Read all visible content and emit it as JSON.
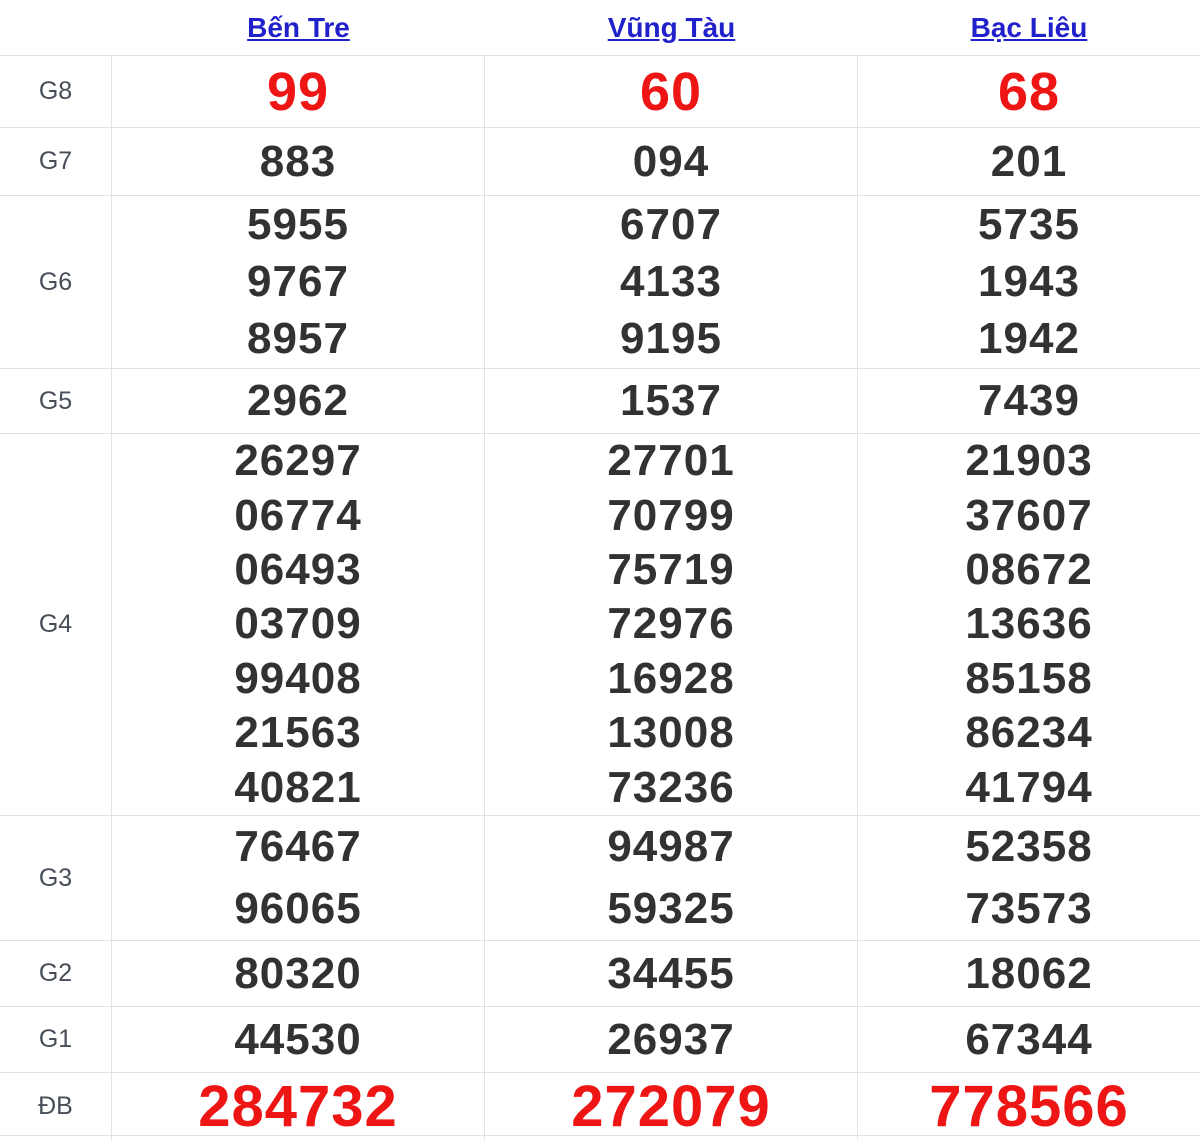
{
  "colors": {
    "link": "#2121cc",
    "red": "#ee1515",
    "num": "#323232",
    "label": "#474e58",
    "border": "#e2e2e2"
  },
  "table": {
    "headers": [
      {
        "label": "Bến Tre"
      },
      {
        "label": "Vũng Tàu"
      },
      {
        "label": "Bạc Liêu"
      }
    ],
    "rows": [
      {
        "label": "G8",
        "cols": [
          [
            "99"
          ],
          [
            "60"
          ],
          [
            "68"
          ]
        ]
      },
      {
        "label": "G7",
        "cols": [
          [
            "883"
          ],
          [
            "094"
          ],
          [
            "201"
          ]
        ]
      },
      {
        "label": "G6",
        "cols": [
          [
            "5955",
            "9767",
            "8957"
          ],
          [
            "6707",
            "4133",
            "9195"
          ],
          [
            "5735",
            "1943",
            "1942"
          ]
        ]
      },
      {
        "label": "G5",
        "cols": [
          [
            "2962"
          ],
          [
            "1537"
          ],
          [
            "7439"
          ]
        ]
      },
      {
        "label": "G4",
        "cols": [
          [
            "26297",
            "06774",
            "06493",
            "03709",
            "99408",
            "21563",
            "40821"
          ],
          [
            "27701",
            "70799",
            "75719",
            "72976",
            "16928",
            "13008",
            "73236"
          ],
          [
            "21903",
            "37607",
            "08672",
            "13636",
            "85158",
            "86234",
            "41794"
          ]
        ]
      },
      {
        "label": "G3",
        "cols": [
          [
            "76467",
            "96065"
          ],
          [
            "94987",
            "59325"
          ],
          [
            "52358",
            "73573"
          ]
        ]
      },
      {
        "label": "G2",
        "cols": [
          [
            "80320"
          ],
          [
            "34455"
          ],
          [
            "18062"
          ]
        ]
      },
      {
        "label": "G1",
        "cols": [
          [
            "44530"
          ],
          [
            "26937"
          ],
          [
            "67344"
          ]
        ]
      },
      {
        "label": "ĐB",
        "cols": [
          [
            "284732"
          ],
          [
            "272079"
          ],
          [
            "778566"
          ]
        ]
      }
    ]
  }
}
